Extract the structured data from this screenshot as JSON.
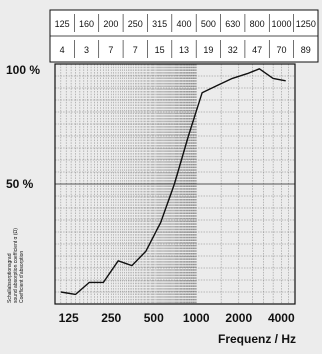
{
  "chart_data": {
    "type": "line",
    "header_top": [
      "125",
      "160",
      "200",
      "250",
      "315",
      "400",
      "500",
      "630",
      "800",
      "1000",
      "1250"
    ],
    "header_bottom": [
      "4",
      "3",
      "7",
      "7",
      "15",
      "13",
      "19",
      "32",
      "47",
      "70",
      "89"
    ],
    "yticks": [
      "100 %",
      "50 %"
    ],
    "xticks": [
      "125",
      "250",
      "500",
      "1000",
      "2000",
      "4000"
    ],
    "xlabel": "Frequenz / Hz",
    "ylabel_lines": [
      "Schallabsorptionsgrad",
      "sound absorption coefficient α (Ω)",
      "Coefficient d’absorption"
    ],
    "xscale": "log",
    "xlim": [
      100,
      5000
    ],
    "ylim": [
      0,
      100
    ],
    "grid": true,
    "series": [
      {
        "x": [
          110,
          140,
          175,
          220,
          280,
          350,
          440,
          560,
          700,
          880,
          1100,
          1400,
          1800,
          2300,
          2800,
          3500,
          4300
        ],
        "y": [
          5,
          4,
          9,
          9,
          18,
          16,
          22,
          34,
          50,
          70,
          88,
          91,
          94,
          96,
          98,
          94,
          93
        ]
      }
    ],
    "colors": {
      "line": "#111111",
      "grid": "#555555",
      "background": "#ececec"
    }
  }
}
